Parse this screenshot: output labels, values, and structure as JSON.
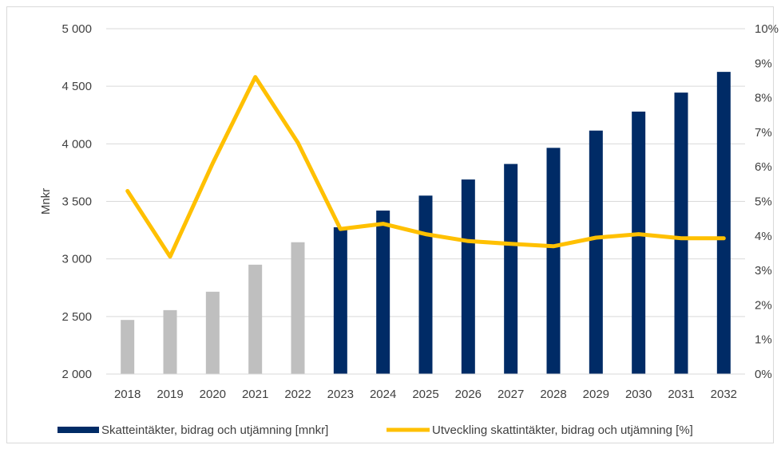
{
  "chart_data": {
    "type": "bar",
    "categories": [
      "2018",
      "2019",
      "2020",
      "2021",
      "2022",
      "2023",
      "2024",
      "2025",
      "2026",
      "2027",
      "2028",
      "2029",
      "2030",
      "2031",
      "2032"
    ],
    "ylabel": "Mnkr",
    "y_left": {
      "min": 2000,
      "max": 5000,
      "step": 500,
      "tick_labels": [
        "2 000",
        "2 500",
        "3 000",
        "3 500",
        "4 000",
        "4 500",
        "5 000"
      ]
    },
    "y_right": {
      "min": 0,
      "max": 10,
      "step": 1,
      "tick_labels": [
        "0%",
        "1%",
        "2%",
        "3%",
        "4%",
        "5%",
        "6%",
        "7%",
        "8%",
        "9%",
        "10%"
      ]
    },
    "series": [
      {
        "name": "Skatteintäkter, bidrag och utjämning [mnkr]",
        "type": "bar",
        "axis": "left",
        "values": [
          2470,
          2555,
          2715,
          2950,
          3145,
          3275,
          3420,
          3550,
          3690,
          3825,
          3965,
          4115,
          4280,
          4445,
          4625
        ],
        "colors": [
          "#bfbfbf",
          "#bfbfbf",
          "#bfbfbf",
          "#bfbfbf",
          "#bfbfbf",
          "#002b66",
          "#002b66",
          "#002b66",
          "#002b66",
          "#002b66",
          "#002b66",
          "#002b66",
          "#002b66",
          "#002b66",
          "#002b66"
        ],
        "legend_color": "#002b66"
      },
      {
        "name": "Utveckling skattintäkter, bidrag och utjämning [%]",
        "type": "line",
        "axis": "right",
        "values": [
          5.3,
          3.4,
          6.1,
          8.6,
          6.7,
          4.2,
          4.35,
          4.05,
          3.85,
          3.77,
          3.7,
          3.95,
          4.05,
          3.93,
          3.93
        ],
        "color": "#ffc000"
      }
    ],
    "grid": true,
    "legend_position": "bottom"
  }
}
